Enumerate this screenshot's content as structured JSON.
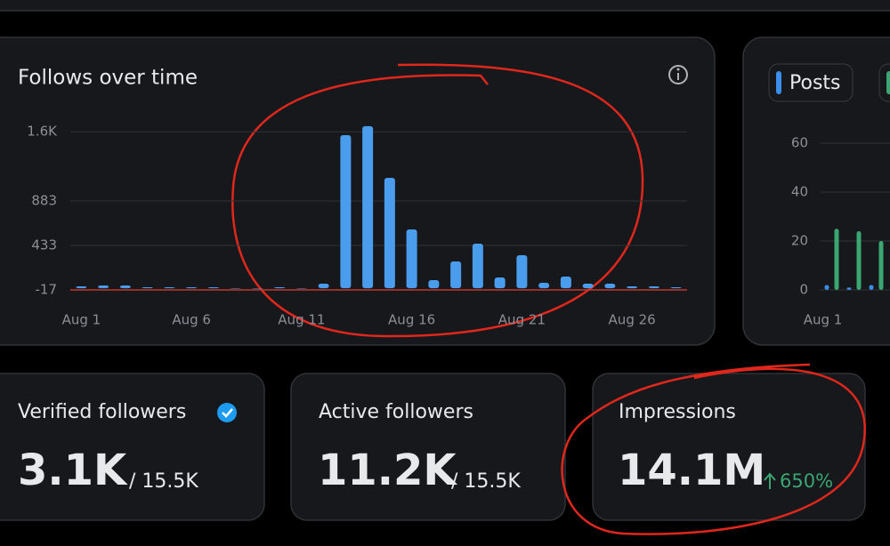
{
  "chart_data": [
    {
      "type": "bar",
      "title": "Follows over time",
      "categories": [
        "Aug 1",
        null,
        null,
        null,
        null,
        "Aug 6",
        null,
        null,
        null,
        null,
        "Aug 11",
        null,
        null,
        null,
        null,
        "Aug 16",
        null,
        null,
        null,
        null,
        "Aug 21",
        null,
        null,
        null,
        null,
        "Aug 26",
        null,
        null
      ],
      "series": [
        {
          "color": "#4a9ced",
          "values": [
            19,
            28,
            28,
            10,
            10,
            10,
            10,
            0,
            0,
            10,
            1,
            46,
            1549,
            1640,
            1117,
            595,
            82,
            271,
            451,
            109,
            334,
            55,
            118,
            46,
            46,
            19,
            19,
            10
          ]
        }
      ],
      "ylim": [
        -17,
        1700
      ],
      "yticks": [
        -17,
        433,
        883,
        {
          "value": 1583,
          "label": "1.6K"
        }
      ],
      "grid": true
    },
    {
      "type": "bar",
      "categories": [
        "Aug 1",
        null,
        null
      ],
      "series": [
        {
          "name": "Posts",
          "color": "#3b8eea",
          "values": [
            2,
            1,
            2
          ]
        },
        {
          "color": "#3aa672",
          "values": [
            25,
            24,
            20
          ]
        }
      ],
      "ylim": [
        0,
        60
      ],
      "yticks": [
        0,
        20,
        40,
        60
      ],
      "grid": true
    }
  ],
  "stats": [
    {
      "title": "Verified followers",
      "value": "3.1K",
      "total": "/ 15.5K"
    },
    {
      "title": "Active followers",
      "value": "11.2K",
      "total": "/ 15.5K"
    },
    {
      "title": "Impressions",
      "value": "14.1M",
      "change": "650%"
    }
  ]
}
